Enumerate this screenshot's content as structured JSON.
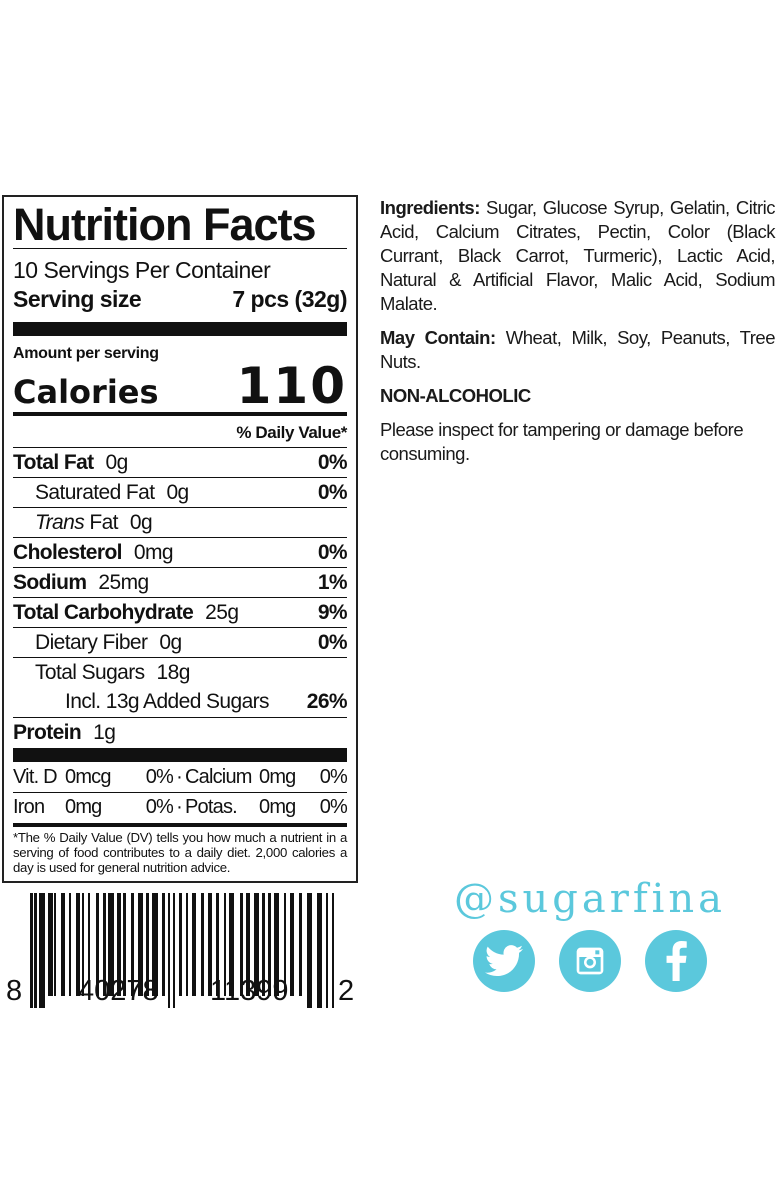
{
  "label": {
    "title": "Nutrition Facts",
    "servings": "10 Servings Per Container",
    "serving_size_label": "Serving size",
    "serving_size_value": "7 pcs (32g)",
    "amount_per_serving": "Amount per serving",
    "calories_label": "Calories",
    "calories_value": "110",
    "dv_header": "% Daily Value*",
    "nutrients": [
      {
        "name": "Total Fat",
        "amount": "0g",
        "dv": "0%"
      },
      {
        "name": "Saturated Fat",
        "amount": "0g",
        "dv": "0%"
      },
      {
        "name_italic": "Trans",
        "name": " Fat",
        "amount": "0g",
        "dv": ""
      },
      {
        "name": "Cholesterol",
        "amount": "0mg",
        "dv": "0%"
      },
      {
        "name": "Sodium",
        "amount": "25mg",
        "dv": "1%"
      },
      {
        "name": "Total Carbohydrate",
        "amount": "25g",
        "dv": "9%"
      },
      {
        "name": "Dietary Fiber",
        "amount": "0g",
        "dv": "0%"
      },
      {
        "name": "Total Sugars",
        "amount": "18g",
        "dv": ""
      },
      {
        "name": "Incl. 13g Added Sugars",
        "amount": "",
        "dv": "26%"
      },
      {
        "name": "Protein",
        "amount": "1g",
        "dv": ""
      }
    ],
    "vitamins": [
      {
        "a_name": "Vit. D",
        "a_amt": "0mcg",
        "a_dv": "0%",
        "b_name": "Calcium",
        "b_amt": "0mg",
        "b_dv": "0%"
      },
      {
        "a_name": "Iron",
        "a_amt": "0mg",
        "a_dv": "0%",
        "b_name": "Potas.",
        "b_amt": "0mg",
        "b_dv": "0%"
      }
    ],
    "footnote": "*The % Daily Value (DV) tells you how much a nutrient in a serving of food contributes to a daily diet. 2,000 calories a day is used for general nutrition advice."
  },
  "barcode": {
    "digits": [
      "8",
      "40278",
      "11399",
      "2"
    ]
  },
  "info": {
    "ingredients_label": "Ingredients:",
    "ingredients": " Sugar, Glucose Syrup, Gelatin, Citric Acid, Calcium Citrates, Pectin, Color (Black Currant, Black Carrot, Turmeric), Lactic Acid, Natural & Artificial Flavor, Malic Acid, Sodium Malate.",
    "may_contain_label": "May Contain:",
    "may_contain": " Wheat, Milk, Soy, Peanuts, Tree Nuts.",
    "non_alcoholic": "NON-ALCOHOLIC",
    "tamper": "Please inspect for tampering or damage before consuming."
  },
  "social": {
    "handle": "@sugarfina",
    "color": "#5bc8dc",
    "icons": [
      "twitter-icon",
      "instagram-icon",
      "facebook-icon"
    ]
  }
}
